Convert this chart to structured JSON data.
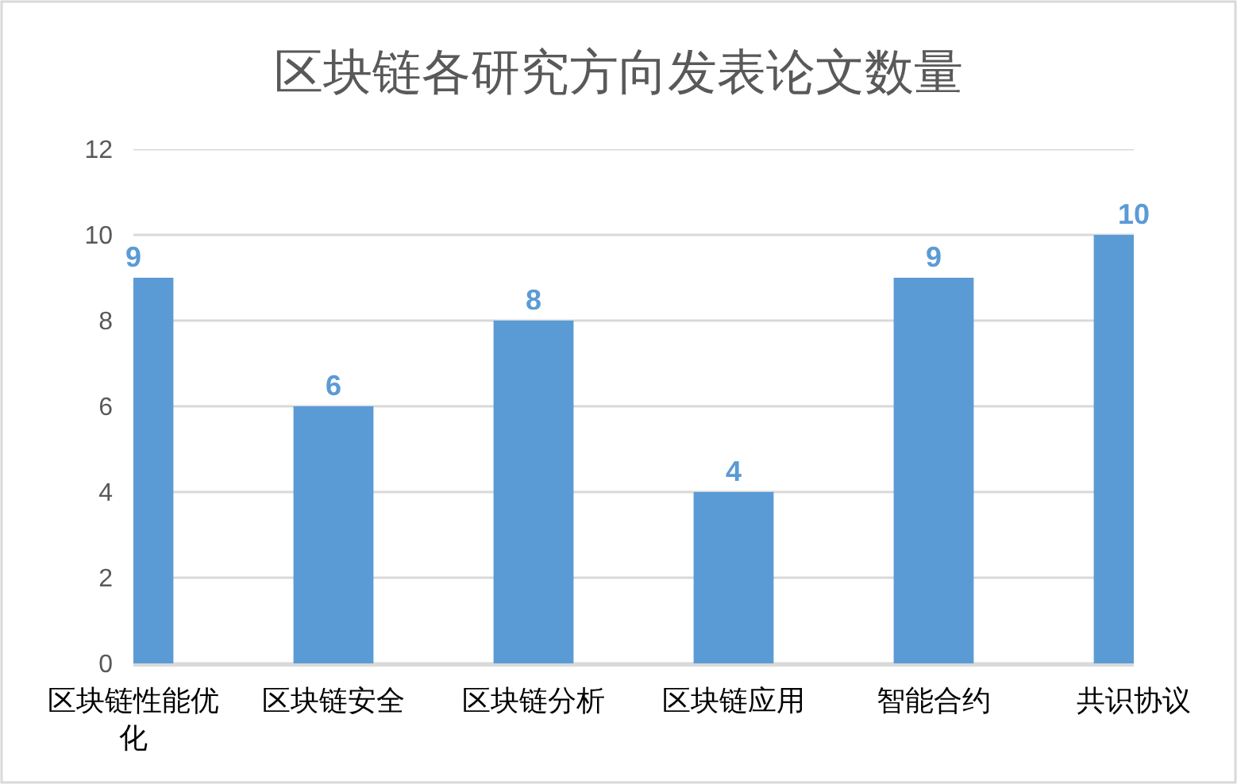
{
  "chart_data": {
    "type": "bar",
    "title": "区块链各研究方向发表论文数量",
    "categories": [
      "区块链性能优化",
      "区块链安全",
      "区块链分析",
      "区块链应用",
      "智能合约",
      "共识协议"
    ],
    "values": [
      9,
      6,
      8,
      4,
      9,
      10
    ],
    "color": "#5b9bd5",
    "ylim": [
      0,
      12
    ],
    "yticks": [
      0,
      2,
      4,
      6,
      8,
      10,
      12
    ],
    "grid": "y",
    "data_labels": true
  }
}
